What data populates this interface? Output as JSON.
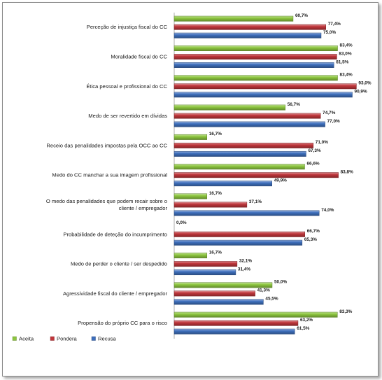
{
  "chart_data": {
    "type": "bar",
    "orientation": "horizontal",
    "categories": [
      "Perceção de injustiça fiscal do CC",
      "Moralidade fiscal do CC",
      "Ética pessoal e profissional do CC",
      "Medo de ser revertido em dívidas",
      "Receio das penalidades impostas pela OCC ao CC",
      "Medo do CC manchar a sua imagem profissional",
      "O medo das penalidades que podem recair sobre o cliente / empregador",
      "Probabilidade de deteção do incumprimento",
      "Medo de perder o cliente / ser despedido",
      "Agressividade fiscal do cliente / empregador",
      "Propensão do próprio CC para o risco"
    ],
    "series": [
      {
        "name": "Aceita",
        "color": "#8dc63f",
        "values": [
          60.7,
          83.4,
          83.4,
          56.7,
          16.7,
          66.6,
          16.7,
          0.0,
          16.7,
          50.0,
          83.3
        ],
        "labels": [
          "60,7%",
          "83,4%",
          "83,4%",
          "56,7%",
          "16,7%",
          "66,6%",
          "16,7%",
          "0,0%",
          "16,7%",
          "50,0%",
          "83,3%"
        ]
      },
      {
        "name": "Pondera",
        "color": "#c0363b",
        "values": [
          77.4,
          83.0,
          93.0,
          74.7,
          71.0,
          83.8,
          37.1,
          66.7,
          32.1,
          41.3,
          63.2
        ],
        "labels": [
          "77,4%",
          "83,0%",
          "93,0%",
          "74,7%",
          "71,0%",
          "83,8%",
          "37,1%",
          "66,7%",
          "32,1%",
          "41,3%",
          "63,2%"
        ]
      },
      {
        "name": "Recusa",
        "color": "#3e6fbd",
        "values": [
          75.0,
          81.5,
          90.9,
          77.0,
          67.3,
          49.9,
          74.0,
          65.3,
          31.4,
          45.5,
          61.5
        ],
        "labels": [
          "75,0%",
          "81,5%",
          "90,9%",
          "77,0%",
          "67,3%",
          "49,9%",
          "74,0%",
          "65,3%",
          "31,4%",
          "45,5%",
          "61,5%"
        ]
      }
    ],
    "xlim": [
      0,
      100
    ],
    "grid": false,
    "legend_position": "bottom-left"
  }
}
